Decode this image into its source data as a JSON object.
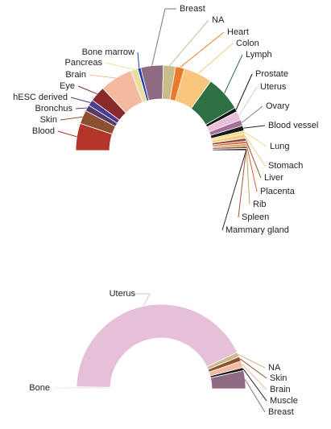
{
  "chart_data": [
    {
      "type": "pie",
      "style": "half-donut",
      "slices": [
        {
          "label": "Blood",
          "value": 8.0,
          "color": "#B5342A"
        },
        {
          "label": "Skin",
          "value": 4.0,
          "color": "#8C5030"
        },
        {
          "label": "Bronchus",
          "value": 1.8,
          "color": "#573A6B"
        },
        {
          "label": "hESC derived",
          "value": 1.8,
          "color": "#4B3B92"
        },
        {
          "label": "Eye",
          "value": 4.6,
          "color": "#882A2A"
        },
        {
          "label": "Brain",
          "value": 9.6,
          "color": "#F3BAA0"
        },
        {
          "label": "Pancreas",
          "value": 2.1,
          "color": "#E8DF9F"
        },
        {
          "label": "Bone marrow",
          "value": 0.9,
          "color": "#1F3BA8"
        },
        {
          "label": "Breast",
          "value": 6.6,
          "color": "#8E6B82"
        },
        {
          "label": "NA",
          "value": 3.6,
          "color": "#C9BB8A"
        },
        {
          "label": "Heart",
          "value": 2.6,
          "color": "#E87B2B"
        },
        {
          "label": "Colon",
          "value": 8.5,
          "color": "#F7C57B"
        },
        {
          "label": "Lymph",
          "value": 10.5,
          "color": "#2C7043"
        },
        {
          "label": "Prostate",
          "value": 1.2,
          "color": "#111111"
        },
        {
          "label": "Uterus",
          "value": 2.6,
          "color": "#E6C1D9"
        },
        {
          "label": "Ovary",
          "value": 1.8,
          "color": "#A86F9B"
        },
        {
          "label": "Blood vessel",
          "value": 1.5,
          "color": "#1A1A1A"
        },
        {
          "label": "Lung",
          "value": 0.9,
          "color": "#F6DA76"
        },
        {
          "label": "Stomach",
          "value": 1.3,
          "color": "#F3CF8B"
        },
        {
          "label": "Liver",
          "value": 0.9,
          "color": "#8C4B33"
        },
        {
          "label": "Placenta",
          "value": 0.7,
          "color": "#E05A35"
        },
        {
          "label": "Rib",
          "value": 0.7,
          "color": "#C5A05A"
        },
        {
          "label": "Spleen",
          "value": 0.7,
          "color": "#A6533A"
        },
        {
          "label": "Mammary gland",
          "value": 0.6,
          "color": "#2A2A2A"
        }
      ]
    },
    {
      "type": "pie",
      "style": "half-donut",
      "slices": [
        {
          "label": "Bone",
          "value": 0.8,
          "color": "#F7E6EE"
        },
        {
          "label": "Uterus",
          "value": 85.0,
          "color": "#E6BFD8"
        },
        {
          "label": "NA",
          "value": 1.8,
          "color": "#C9BB8A"
        },
        {
          "label": "Skin",
          "value": 1.8,
          "color": "#8C5030"
        },
        {
          "label": "Brain",
          "value": 2.5,
          "color": "#F3BAA0"
        },
        {
          "label": "Muscle",
          "value": 1.2,
          "color": "#1A1A1A"
        },
        {
          "label": "Breast",
          "value": 6.9,
          "color": "#8E6B82"
        }
      ]
    }
  ]
}
